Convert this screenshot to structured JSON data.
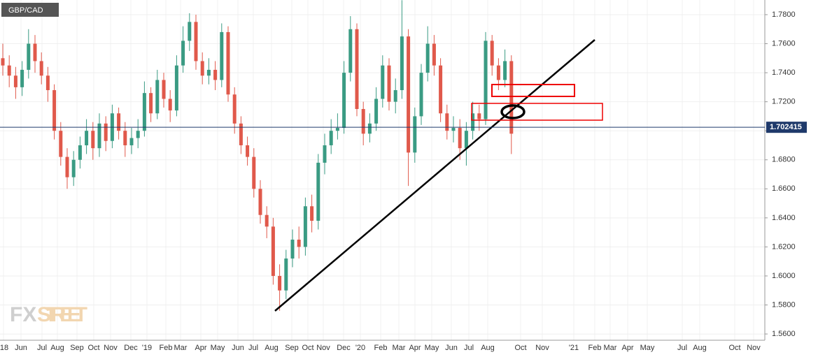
{
  "chart_data": {
    "type": "candlestick",
    "title": "GBP/CAD",
    "logo": [
      "FX",
      "STREET"
    ],
    "up_color": "#3a9b83",
    "down_color": "#e0594b",
    "grid": true,
    "last_price": 1.702415,
    "last_price_color": "#1f3a6b",
    "ylim": [
      1.5557,
      1.7901
    ],
    "yticks": [
      {
        "value": 1.56,
        "label": "1.5600"
      },
      {
        "value": 1.58,
        "label": "1.5800"
      },
      {
        "value": 1.6,
        "label": "1.6000"
      },
      {
        "value": 1.62,
        "label": "1.6200"
      },
      {
        "value": 1.64,
        "label": "1.6400"
      },
      {
        "value": 1.66,
        "label": "1.6600"
      },
      {
        "value": 1.68,
        "label": "1.6800"
      },
      {
        "value": 1.7,
        "label": "1.7000"
      },
      {
        "value": 1.72,
        "label": "1.7200"
      },
      {
        "value": 1.74,
        "label": "1.7400"
      },
      {
        "value": 1.76,
        "label": "1.7600"
      },
      {
        "value": 1.78,
        "label": "1.7800"
      }
    ],
    "x_labels": [
      "'18",
      "Jun",
      "Jul",
      "Aug",
      "Sep",
      "Oct",
      "Nov",
      "Dec",
      "'19",
      "Feb",
      "Mar",
      "Apr",
      "May",
      "Jun",
      "Jul",
      "Aug",
      "Sep",
      "Oct",
      "Nov",
      "Dec",
      "'20",
      "Feb",
      "Mar",
      "Apr",
      "May",
      "Jun",
      "Jul",
      "Aug",
      "Oct",
      "Nov",
      "'21",
      "Feb",
      "Mar",
      "Apr",
      "May",
      "Jul",
      "Aug",
      "Oct",
      "Nov"
    ],
    "open": [
      1.75,
      1.745,
      1.738,
      1.73,
      1.742,
      1.76,
      1.748,
      1.738,
      1.728,
      1.7,
      1.682,
      1.668,
      1.68,
      1.69,
      1.7,
      1.688,
      1.705,
      1.693,
      1.712,
      1.7,
      1.69,
      1.695,
      1.7,
      1.726,
      1.712,
      1.735,
      1.722,
      1.714,
      1.745,
      1.762,
      1.775,
      1.748,
      1.738,
      1.742,
      1.735,
      1.768,
      1.725,
      1.705,
      1.69,
      1.682,
      1.66,
      1.642,
      1.634,
      1.6,
      1.59,
      1.612,
      1.625,
      1.62,
      1.648,
      1.638,
      1.678,
      1.69,
      1.7,
      1.702,
      1.74,
      1.77,
      1.715,
      1.698,
      1.705,
      1.722,
      1.745,
      1.72,
      1.728,
      1.765,
      1.685,
      1.71,
      1.74,
      1.76,
      1.745,
      1.712,
      1.7,
      1.702,
      1.688,
      1.7,
      1.712,
      1.708,
      1.762,
      1.745,
      1.735,
      1.748
    ],
    "high": [
      1.76,
      1.752,
      1.744,
      1.748,
      1.77,
      1.766,
      1.754,
      1.744,
      1.732,
      1.706,
      1.688,
      1.686,
      1.696,
      1.708,
      1.706,
      1.712,
      1.71,
      1.718,
      1.716,
      1.706,
      1.702,
      1.708,
      1.734,
      1.73,
      1.742,
      1.74,
      1.728,
      1.752,
      1.772,
      1.781,
      1.78,
      1.754,
      1.75,
      1.748,
      1.774,
      1.772,
      1.73,
      1.71,
      1.696,
      1.688,
      1.666,
      1.648,
      1.64,
      1.608,
      1.618,
      1.632,
      1.634,
      1.654,
      1.656,
      1.684,
      1.698,
      1.708,
      1.712,
      1.748,
      1.779,
      1.774,
      1.72,
      1.712,
      1.73,
      1.752,
      1.75,
      1.736,
      1.79,
      1.77,
      1.716,
      1.746,
      1.772,
      1.766,
      1.75,
      1.718,
      1.71,
      1.708,
      1.706,
      1.72,
      1.718,
      1.768,
      1.766,
      1.75,
      1.756,
      1.752
    ],
    "low": [
      1.738,
      1.73,
      1.722,
      1.724,
      1.736,
      1.74,
      1.732,
      1.72,
      1.694,
      1.676,
      1.66,
      1.662,
      1.674,
      1.684,
      1.68,
      1.682,
      1.686,
      1.688,
      1.694,
      1.682,
      1.684,
      1.688,
      1.696,
      1.706,
      1.708,
      1.716,
      1.706,
      1.71,
      1.74,
      1.755,
      1.742,
      1.732,
      1.732,
      1.728,
      1.73,
      1.72,
      1.698,
      1.684,
      1.676,
      1.654,
      1.636,
      1.626,
      1.594,
      1.576,
      1.584,
      1.606,
      1.612,
      1.614,
      1.63,
      1.632,
      1.67,
      1.684,
      1.694,
      1.698,
      1.734,
      1.71,
      1.69,
      1.692,
      1.7,
      1.716,
      1.714,
      1.712,
      1.722,
      1.662,
      1.678,
      1.704,
      1.734,
      1.738,
      1.706,
      1.694,
      1.692,
      1.68,
      1.676,
      1.694,
      1.7,
      1.704,
      1.738,
      1.728,
      1.73,
      1.684
    ],
    "close": [
      1.745,
      1.738,
      1.73,
      1.742,
      1.76,
      1.748,
      1.738,
      1.728,
      1.7,
      1.682,
      1.668,
      1.68,
      1.69,
      1.7,
      1.688,
      1.705,
      1.693,
      1.712,
      1.7,
      1.69,
      1.695,
      1.7,
      1.726,
      1.712,
      1.735,
      1.722,
      1.714,
      1.745,
      1.762,
      1.775,
      1.748,
      1.738,
      1.742,
      1.735,
      1.768,
      1.725,
      1.705,
      1.69,
      1.682,
      1.66,
      1.642,
      1.634,
      1.6,
      1.59,
      1.612,
      1.625,
      1.62,
      1.648,
      1.638,
      1.678,
      1.69,
      1.7,
      1.702,
      1.74,
      1.77,
      1.715,
      1.698,
      1.705,
      1.722,
      1.745,
      1.72,
      1.728,
      1.765,
      1.685,
      1.71,
      1.74,
      1.76,
      1.745,
      1.712,
      1.7,
      1.702,
      1.688,
      1.7,
      1.712,
      1.708,
      1.762,
      1.745,
      1.735,
      1.748,
      1.698
    ]
  }
}
